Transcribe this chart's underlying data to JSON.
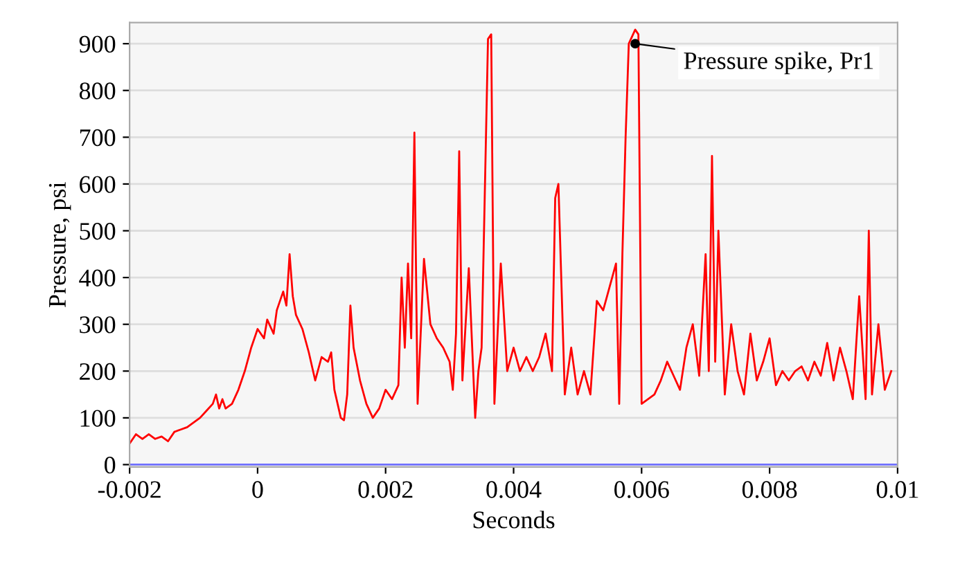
{
  "chart_data": {
    "type": "line",
    "xlabel": "Seconds",
    "ylabel": "Pressure, psi",
    "x": [
      -0.002,
      -0.0019,
      -0.0018,
      -0.0017,
      -0.0016,
      -0.0015,
      -0.0014,
      -0.0013,
      -0.0012,
      -0.0011,
      -0.001,
      -0.0009,
      -0.0008,
      -0.0007,
      -0.00065,
      -0.0006,
      -0.00055,
      -0.0005,
      -0.0004,
      -0.0003,
      -0.0002,
      -0.0001,
      0,
      0.0001,
      0.00015,
      0.00025,
      0.0003,
      0.0004,
      0.00045,
      0.0005,
      0.00055,
      0.0006,
      0.0007,
      0.0008,
      0.0009,
      0.001,
      0.0011,
      0.00115,
      0.0012,
      0.0013,
      0.00135,
      0.0014,
      0.00145,
      0.0015,
      0.0016,
      0.0017,
      0.0018,
      0.0019,
      0.002,
      0.0021,
      0.0022,
      0.00225,
      0.0023,
      0.00235,
      0.0024,
      0.00245,
      0.0025,
      0.0026,
      0.0027,
      0.0028,
      0.0029,
      0.003,
      0.00305,
      0.0031,
      0.00315,
      0.0032,
      0.0033,
      0.0034,
      0.00345,
      0.0035,
      0.0036,
      0.00365,
      0.0037,
      0.0038,
      0.0039,
      0.004,
      0.0041,
      0.0042,
      0.0043,
      0.0044,
      0.0045,
      0.0046,
      0.00465,
      0.0047,
      0.0048,
      0.0049,
      0.005,
      0.0051,
      0.0052,
      0.0053,
      0.0054,
      0.0055,
      0.0056,
      0.00565,
      0.0057,
      0.00575,
      0.0058,
      0.0059,
      0.00595,
      0.006,
      0.0061,
      0.0062,
      0.0063,
      0.0064,
      0.0065,
      0.0066,
      0.0067,
      0.0068,
      0.0069,
      0.007,
      0.00705,
      0.0071,
      0.00715,
      0.0072,
      0.0073,
      0.0074,
      0.0075,
      0.0076,
      0.0077,
      0.0078,
      0.0079,
      0.008,
      0.0081,
      0.0082,
      0.0083,
      0.0084,
      0.0085,
      0.0086,
      0.0087,
      0.0088,
      0.0089,
      0.009,
      0.0091,
      0.0092,
      0.0093,
      0.0094,
      0.0095,
      0.00955,
      0.0096,
      0.0097,
      0.0098,
      0.0099
    ],
    "series": [
      {
        "color": "#ff0000",
        "values": [
          45,
          65,
          55,
          65,
          55,
          60,
          50,
          70,
          75,
          80,
          90,
          100,
          115,
          130,
          150,
          120,
          140,
          120,
          130,
          160,
          200,
          250,
          290,
          270,
          310,
          280,
          330,
          370,
          340,
          450,
          360,
          320,
          290,
          240,
          180,
          230,
          220,
          240,
          160,
          100,
          95,
          150,
          340,
          250,
          180,
          130,
          100,
          120,
          160,
          140,
          170,
          400,
          250,
          430,
          270,
          710,
          130,
          440,
          300,
          270,
          250,
          220,
          160,
          280,
          670,
          180,
          420,
          100,
          200,
          250,
          910,
          920,
          130,
          430,
          200,
          250,
          200,
          230,
          200,
          230,
          280,
          200,
          570,
          600,
          150,
          250,
          150,
          200,
          150,
          350,
          330,
          380,
          430,
          130,
          450,
          700,
          900,
          930,
          920,
          130,
          140,
          150,
          180,
          220,
          190,
          160,
          250,
          300,
          190,
          450,
          200,
          660,
          220,
          500,
          150,
          300,
          200,
          150,
          280,
          180,
          220,
          270,
          170,
          200,
          180,
          200,
          210,
          180,
          220,
          190,
          260,
          180,
          250,
          200,
          140,
          360,
          140,
          500,
          150,
          300,
          160,
          200
        ]
      },
      {
        "color": "#7070ff",
        "x": [
          -0.002,
          0.01
        ],
        "values": [
          0,
          0
        ]
      }
    ],
    "xlim": [
      -0.002,
      0.01
    ],
    "xticks": [
      -0.002,
      0,
      0.002,
      0.004,
      0.006,
      0.008,
      0.01
    ],
    "ylim": [
      -5,
      945
    ],
    "yticks": [
      0,
      100,
      200,
      300,
      400,
      500,
      600,
      700,
      800,
      900
    ],
    "grid": "y",
    "legend": false,
    "marker": "none",
    "line_style": "solid",
    "annotations": [
      {
        "text": "Pressure spike, Pr1",
        "x": 0.0059,
        "y": 900
      }
    ]
  }
}
